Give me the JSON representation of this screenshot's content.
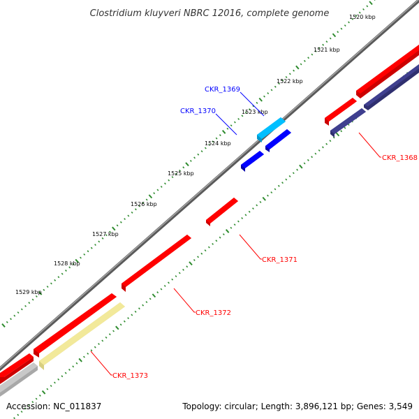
{
  "title": "Clostridium kluyveri NBRC 12016, complete genome",
  "accession": "Accession: NC_011837",
  "summary": "Topology: circular; Length: 3,896,121 bp; Genes: 3,549",
  "colors": {
    "backbone": "#7f7f7f",
    "tick": "#2e8b2e",
    "forward_gene": "#ff0000",
    "reverse_gene": "#ff0000",
    "blue_gene": "#0000ff",
    "cyan_gene": "#00bfff",
    "navy_gene": "#3f3f8f",
    "pale_gene": "#f2e99a",
    "grey_gene": "#c8c8c8",
    "label_red": "#ff0000",
    "label_blue": "#0000ff"
  },
  "kbp_labels": [
    "1520 kbp",
    "1521 kbp",
    "1522 kbp",
    "1523 kbp",
    "1524 kbp",
    "1525 kbp",
    "1526 kbp",
    "1527 kbp",
    "1528 kbp",
    "1529 kbp"
  ],
  "gene_labels": {
    "ckr_1368": "CKR_1368",
    "ckr_1369": "CKR_1369",
    "ckr_1370": "CKR_1370",
    "ckr_1371": "CKR_1371",
    "ckr_1372": "CKR_1372",
    "ckr_1373": "CKR_1373"
  }
}
